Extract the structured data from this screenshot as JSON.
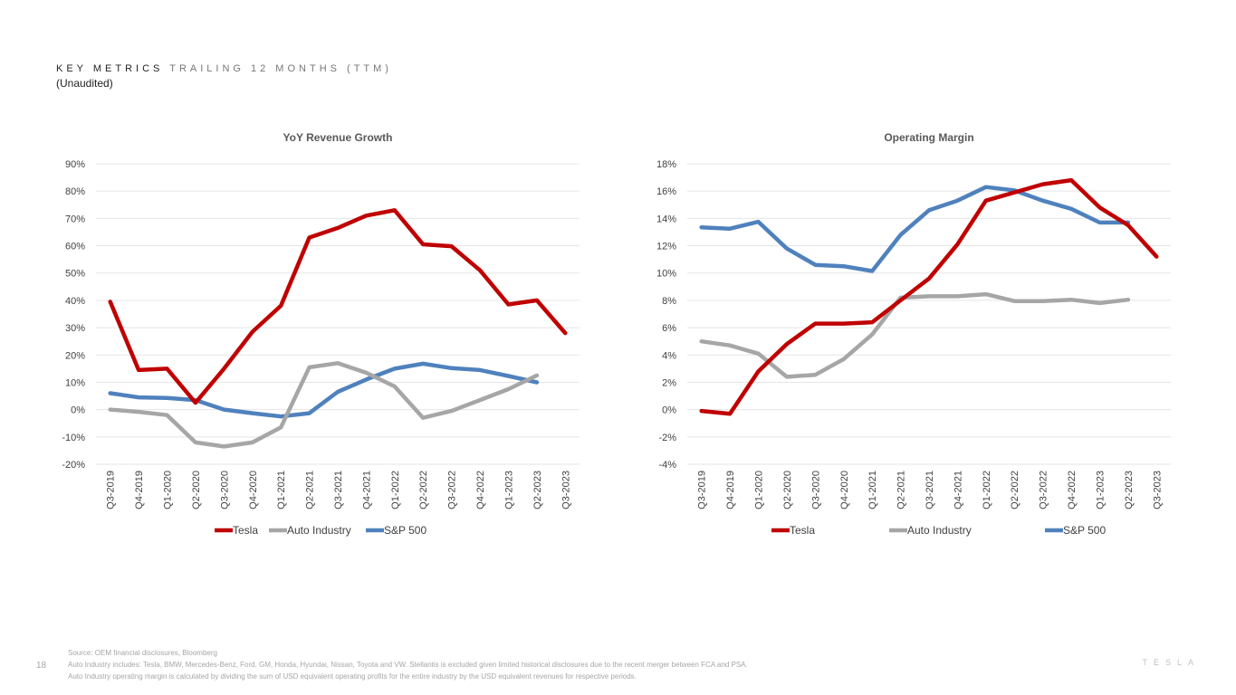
{
  "header": {
    "title_bold": "KEY METRICS",
    "title_light": "TRAILING 12 MONTHS (TTM)",
    "subtitle": "(Unaudited)"
  },
  "colors": {
    "tesla": "#c00000",
    "auto_industry": "#a6a6a6",
    "sp500": "#4f81bd"
  },
  "chart_data": [
    {
      "type": "line",
      "title": "YoY Revenue Growth",
      "xlabel": "",
      "ylabel": "",
      "ylim": [
        -20,
        90
      ],
      "ytick_step": 10,
      "ytick_suffix": "%",
      "categories": [
        "Q3-2019",
        "Q4-2019",
        "Q1-2020",
        "Q2-2020",
        "Q3-2020",
        "Q4-2020",
        "Q1-2021",
        "Q2-2021",
        "Q3-2021",
        "Q4-2021",
        "Q1-2022",
        "Q2-2022",
        "Q3-2022",
        "Q4-2022",
        "Q1-2023",
        "Q2-2023",
        "Q3-2023"
      ],
      "grid": true,
      "legend": "bottom",
      "series": [
        {
          "name": "Tesla",
          "color_key": "tesla",
          "values": [
            39.5,
            14.5,
            15,
            2.5,
            15,
            28.5,
            38,
            63,
            66.5,
            71,
            73,
            60.5,
            59.8,
            51,
            38.5,
            40,
            28
          ]
        },
        {
          "name": "Auto Industry",
          "color_key": "auto_industry",
          "values": [
            0,
            -0.8,
            -2,
            -12,
            -13.5,
            -12,
            -6.5,
            15.5,
            17,
            13.5,
            8.5,
            -3,
            -0.5,
            3.5,
            7.5,
            12.5,
            null
          ]
        },
        {
          "name": "S&P 500",
          "color_key": "sp500",
          "values": [
            6,
            4.5,
            4.3,
            3.5,
            0,
            -1.3,
            -2.5,
            -1.3,
            6.5,
            11,
            15,
            16.8,
            15.2,
            14.5,
            12.3,
            10,
            null
          ]
        }
      ]
    },
    {
      "type": "line",
      "title": "Operating Margin",
      "xlabel": "",
      "ylabel": "",
      "ylim": [
        -4,
        18
      ],
      "ytick_step": 2,
      "ytick_suffix": "%",
      "categories": [
        "Q3-2019",
        "Q4-2019",
        "Q1-2020",
        "Q2-2020",
        "Q3-2020",
        "Q4-2020",
        "Q1-2021",
        "Q2-2021",
        "Q3-2021",
        "Q4-2021",
        "Q1-2022",
        "Q2-2022",
        "Q3-2022",
        "Q4-2022",
        "Q1-2023",
        "Q2-2023",
        "Q3-2023"
      ],
      "grid": true,
      "legend": "bottom",
      "series": [
        {
          "name": "Tesla",
          "color_key": "tesla",
          "values": [
            -0.1,
            -0.3,
            2.8,
            4.8,
            6.3,
            6.3,
            6.4,
            8,
            9.6,
            12.1,
            15.3,
            15.9,
            16.5,
            16.8,
            14.8,
            13.5,
            11.2
          ]
        },
        {
          "name": "Auto Industry",
          "color_key": "auto_industry",
          "values": [
            5,
            4.7,
            4.1,
            2.4,
            2.55,
            3.7,
            5.5,
            8.2,
            8.3,
            8.3,
            8.45,
            7.95,
            7.95,
            8.05,
            7.8,
            8.05,
            null
          ]
        },
        {
          "name": "S&P 500",
          "color_key": "sp500",
          "values": [
            13.35,
            13.25,
            13.75,
            11.8,
            10.6,
            10.5,
            10.15,
            12.8,
            14.6,
            15.3,
            16.3,
            16.05,
            15.3,
            14.7,
            13.7,
            13.7,
            null
          ]
        }
      ]
    }
  ],
  "footer": {
    "source": "Source: OEM financial disclosures, Bloomberg",
    "note1": "Auto Industry includes: Tesla, BMW, Mercedes-Benz, Ford, GM, Honda, Hyundai, Nissan, Toyota and VW. Stellantis is excluded given limited historical disclosures due to the recent merger between FCA and PSA.",
    "note2": "Auto Industry operating margin is calculated by dividing the sum of USD equivalent operating profits for the entire industry by the USD equivalent revenues for respective periods.",
    "page_number": "18",
    "brand": "TESLA"
  }
}
